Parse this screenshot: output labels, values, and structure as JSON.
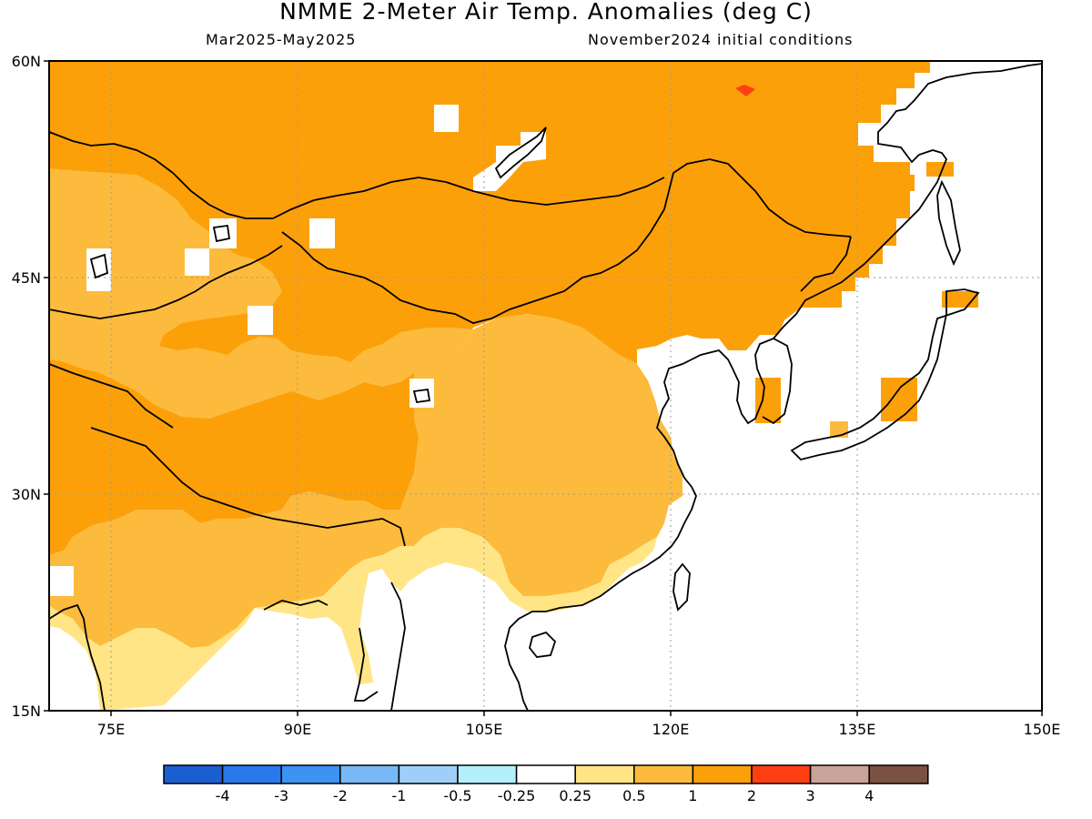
{
  "header": {
    "title": "NMME 2-Meter Air Temp. Anomalies (deg C)",
    "season": "Mar2025-May2025",
    "init": "November2024 initial conditions"
  },
  "axes": {
    "lat_labels": [
      "60N",
      "45N",
      "30N",
      "15N"
    ],
    "lon_labels": [
      "75E",
      "90E",
      "105E",
      "120E",
      "135E",
      "150E"
    ],
    "lat_range": [
      15,
      60
    ],
    "lon_range": [
      70,
      150
    ]
  },
  "legend": {
    "colors": [
      "#1a5fd0",
      "#2a79ea",
      "#3c93f2",
      "#78b8f5",
      "#9fcff8",
      "#b3f0fb",
      "#ffffff",
      "#ffe585",
      "#fcbb3c",
      "#fca00a",
      "#ff3f12",
      "#c9a39a",
      "#7a5143"
    ],
    "labels": [
      "-4",
      "-3",
      "-2",
      "-1",
      "-0.5",
      "-0.25",
      "0.25",
      "0.5",
      "1",
      "2",
      "3",
      "4"
    ]
  }
}
